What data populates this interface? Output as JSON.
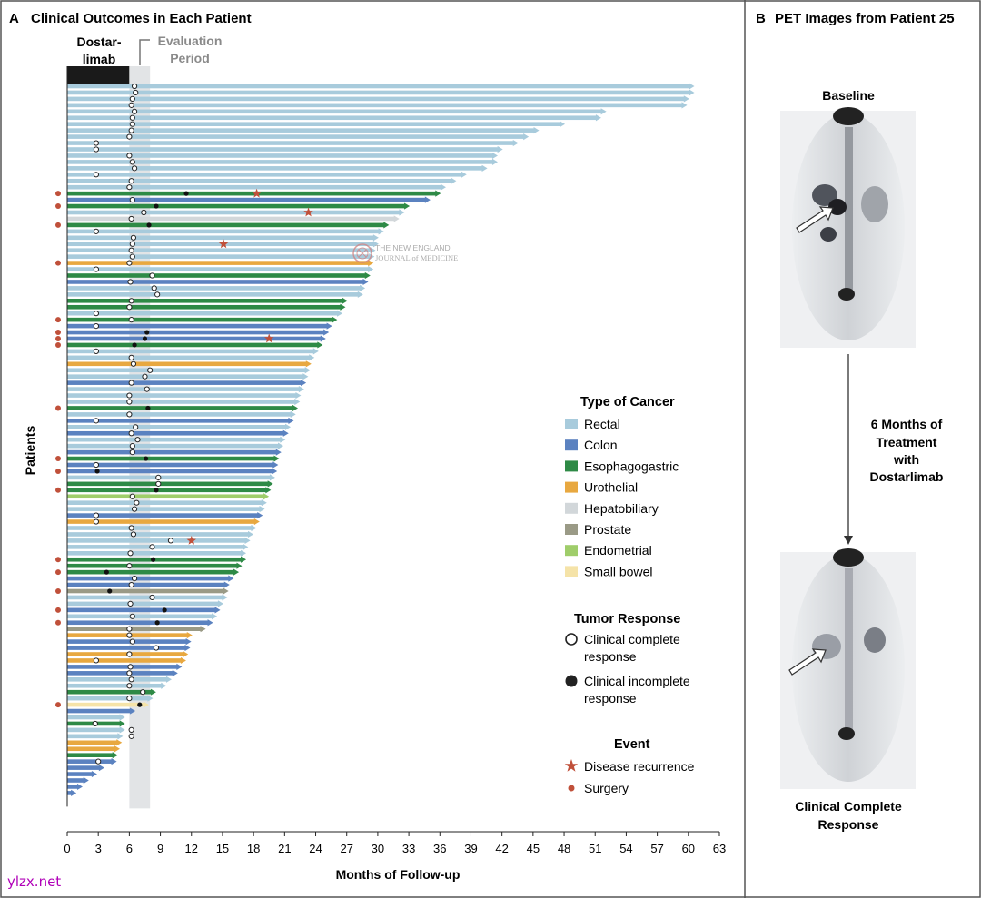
{
  "panel_a": {
    "letter": "A",
    "title": "Clinical Outcomes in Each Patient",
    "dostarlimab_label_1": "Dostar-",
    "dostarlimab_label_2": "limab",
    "evaluation_label_1": "Evaluation",
    "evaluation_label_2": "Period",
    "journal_watermark_1": "THE NEW ENGLAND",
    "journal_watermark_2": "JOURNAL of MEDICINE"
  },
  "panel_b": {
    "letter": "B",
    "title": "PET Images from Patient 25",
    "baseline_label": "Baseline",
    "treatment_label": [
      "6 Months of",
      "Treatment",
      "with",
      "Dostarlimab"
    ],
    "final_label": [
      "Clinical Complete",
      "Response"
    ]
  },
  "legend": {
    "type_title": "Type of Cancer",
    "types": [
      {
        "label": "Rectal",
        "color": "#a8cbdc"
      },
      {
        "label": "Colon",
        "color": "#5b82c0"
      },
      {
        "label": "Esophagogastric",
        "color": "#2e8a46"
      },
      {
        "label": "Urothelial",
        "color": "#e8a840"
      },
      {
        "label": "Hepatobiliary",
        "color": "#d2d7da"
      },
      {
        "label": "Prostate",
        "color": "#9a9a86"
      },
      {
        "label": "Endometrial",
        "color": "#9fcd6a"
      },
      {
        "label": "Small bowel",
        "color": "#f5e3a8"
      }
    ],
    "response_title": "Tumor Response",
    "complete_1": "Clinical complete",
    "complete_2": "response",
    "incomplete_1": "Clinical incomplete",
    "incomplete_2": "response",
    "event_title": "Event",
    "recurrence": "Disease recurrence",
    "surgery": "Surgery"
  },
  "site_watermark": "ylzx.net",
  "chart_data": {
    "type": "bar",
    "orientation": "horizontal",
    "title": "Clinical Outcomes in Each Patient",
    "xlabel": "Months of Follow-up",
    "ylabel": "Patients",
    "xlim": [
      0,
      63
    ],
    "xticks": [
      0,
      3,
      6,
      9,
      12,
      15,
      18,
      21,
      24,
      27,
      30,
      33,
      36,
      39,
      42,
      45,
      48,
      51,
      54,
      57,
      60,
      63
    ],
    "dostarlimab_period": [
      0,
      6
    ],
    "evaluation_period": [
      6,
      8
    ],
    "colors": {
      "rectal": "#a8cbdc",
      "colon": "#5b82c0",
      "eso": "#2e8a46",
      "uro": "#e8a840",
      "hep": "#d2d7da",
      "pro": "#9a9a86",
      "endo": "#9fcd6a",
      "sb": "#f5e3a8"
    },
    "patients": [
      {
        "v": 60.5,
        "t": "rectal",
        "r": "c",
        "rx": 6.5
      },
      {
        "v": 60.5,
        "t": "rectal",
        "r": "c",
        "rx": 6.6
      },
      {
        "v": 60.0,
        "t": "rectal",
        "r": "c",
        "rx": 6.3
      },
      {
        "v": 59.8,
        "t": "rectal",
        "r": "c",
        "rx": 6.2
      },
      {
        "v": 52.0,
        "t": "rectal",
        "r": "c",
        "rx": 6.5
      },
      {
        "v": 51.5,
        "t": "rectal",
        "r": "c",
        "rx": 6.3
      },
      {
        "v": 48.0,
        "t": "rectal",
        "r": "c",
        "rx": 6.3
      },
      {
        "v": 45.5,
        "t": "rectal",
        "r": "c",
        "rx": 6.2
      },
      {
        "v": 44.5,
        "t": "rectal",
        "r": "c",
        "rx": 6.0
      },
      {
        "v": 43.5,
        "t": "rectal",
        "r": "c",
        "rx": 2.8
      },
      {
        "v": 42.0,
        "t": "rectal",
        "r": "c",
        "rx": 2.8
      },
      {
        "v": 41.5,
        "t": "rectal",
        "r": "c",
        "rx": 6.0
      },
      {
        "v": 41.5,
        "t": "rectal",
        "r": "c",
        "rx": 6.3
      },
      {
        "v": 40.5,
        "t": "rectal",
        "r": "c",
        "rx": 6.5
      },
      {
        "v": 38.5,
        "t": "rectal",
        "r": "c",
        "rx": 2.8
      },
      {
        "v": 37.5,
        "t": "rectal",
        "r": "c",
        "rx": 6.2
      },
      {
        "v": 36.5,
        "t": "rectal",
        "r": "c",
        "rx": 6.0
      },
      {
        "v": 36.0,
        "t": "eso",
        "r": "i",
        "rx": 11.5,
        "s": 1,
        "rec": 18.3
      },
      {
        "v": 35.0,
        "t": "colon",
        "r": "c",
        "rx": 6.3
      },
      {
        "v": 33.0,
        "t": "eso",
        "r": "i",
        "rx": 8.6,
        "s": 1
      },
      {
        "v": 32.5,
        "t": "rectal",
        "r": "c",
        "rx": 7.4,
        "rec": 23.3
      },
      {
        "v": 32.0,
        "t": "hep",
        "r": "c",
        "rx": 6.2
      },
      {
        "v": 31.0,
        "t": "eso",
        "r": "i",
        "rx": 7.9,
        "s": 1
      },
      {
        "v": 30.5,
        "t": "rectal",
        "r": "c",
        "rx": 2.8
      },
      {
        "v": 30.0,
        "t": "rectal",
        "r": "c",
        "rx": 6.4
      },
      {
        "v": 30.0,
        "t": "rectal",
        "r": "c",
        "rx": 6.3,
        "rec": 15.1
      },
      {
        "v": 29.7,
        "t": "rectal",
        "r": "c",
        "rx": 6.2
      },
      {
        "v": 29.6,
        "t": "rectal",
        "r": "c",
        "rx": 6.3
      },
      {
        "v": 29.5,
        "t": "uro",
        "r": "c",
        "rx": 6.0,
        "s": 1
      },
      {
        "v": 29.5,
        "t": "rectal",
        "r": "c",
        "rx": 2.8
      },
      {
        "v": 29.2,
        "t": "eso",
        "r": "c",
        "rx": 8.2
      },
      {
        "v": 29.0,
        "t": "colon",
        "r": "c",
        "rx": 6.1
      },
      {
        "v": 28.7,
        "t": "rectal",
        "r": "c",
        "rx": 8.4
      },
      {
        "v": 28.5,
        "t": "rectal",
        "r": "c",
        "rx": 8.7
      },
      {
        "v": 27.0,
        "t": "eso",
        "r": "c",
        "rx": 6.2
      },
      {
        "v": 26.8,
        "t": "eso",
        "r": "c",
        "rx": 6.0
      },
      {
        "v": 26.5,
        "t": "rectal",
        "r": "c",
        "rx": 2.8
      },
      {
        "v": 26.0,
        "t": "eso",
        "r": "c",
        "rx": 6.2,
        "s": 1
      },
      {
        "v": 25.5,
        "t": "colon",
        "r": "c",
        "rx": 2.8
      },
      {
        "v": 25.2,
        "t": "colon",
        "r": "i",
        "rx": 7.7,
        "s": 1
      },
      {
        "v": 24.9,
        "t": "colon",
        "r": "i",
        "rx": 7.5,
        "s": 1,
        "rec": 19.5
      },
      {
        "v": 24.6,
        "t": "eso",
        "r": "i",
        "rx": 6.5,
        "s": 1
      },
      {
        "v": 24.2,
        "t": "rectal",
        "r": "c",
        "rx": 2.8
      },
      {
        "v": 23.8,
        "t": "rectal",
        "r": "c",
        "rx": 6.2
      },
      {
        "v": 23.5,
        "t": "uro",
        "r": "c",
        "rx": 6.4
      },
      {
        "v": 23.4,
        "t": "rectal",
        "r": "c",
        "rx": 8.0
      },
      {
        "v": 23.2,
        "t": "rectal",
        "r": "c",
        "rx": 7.5
      },
      {
        "v": 23.0,
        "t": "colon",
        "r": "c",
        "rx": 6.2
      },
      {
        "v": 22.8,
        "t": "rectal",
        "r": "c",
        "rx": 7.7
      },
      {
        "v": 22.5,
        "t": "rectal",
        "r": "c",
        "rx": 6.0
      },
      {
        "v": 22.4,
        "t": "rectal",
        "r": "c",
        "rx": 6.0
      },
      {
        "v": 22.2,
        "t": "eso",
        "r": "i",
        "rx": 7.8,
        "s": 1
      },
      {
        "v": 22.0,
        "t": "rectal",
        "r": "c",
        "rx": 6.0
      },
      {
        "v": 21.8,
        "t": "colon",
        "r": "c",
        "rx": 2.8
      },
      {
        "v": 21.5,
        "t": "rectal",
        "r": "c",
        "rx": 6.6
      },
      {
        "v": 21.3,
        "t": "colon",
        "r": "c",
        "rx": 6.2
      },
      {
        "v": 21.0,
        "t": "rectal",
        "r": "c",
        "rx": 6.8
      },
      {
        "v": 20.8,
        "t": "rectal",
        "r": "c",
        "rx": 6.3
      },
      {
        "v": 20.6,
        "t": "colon",
        "r": "c",
        "rx": 6.3
      },
      {
        "v": 20.4,
        "t": "eso",
        "r": "i",
        "rx": 7.6,
        "s": 1
      },
      {
        "v": 20.3,
        "t": "colon",
        "r": "c",
        "rx": 2.8
      },
      {
        "v": 20.2,
        "t": "colon",
        "r": "i",
        "rx": 2.9,
        "s": 1
      },
      {
        "v": 20.0,
        "t": "rectal",
        "r": "c",
        "rx": 8.8
      },
      {
        "v": 19.8,
        "t": "eso",
        "r": "c",
        "rx": 8.8
      },
      {
        "v": 19.6,
        "t": "eso",
        "r": "i",
        "rx": 8.6,
        "s": 1
      },
      {
        "v": 19.4,
        "t": "endo",
        "r": "c",
        "rx": 6.3
      },
      {
        "v": 19.2,
        "t": "rectal",
        "r": "c",
        "rx": 6.7
      },
      {
        "v": 19.0,
        "t": "rectal",
        "r": "c",
        "rx": 6.5
      },
      {
        "v": 18.8,
        "t": "colon",
        "r": "c",
        "rx": 2.8
      },
      {
        "v": 18.5,
        "t": "uro",
        "r": "c",
        "rx": 2.8
      },
      {
        "v": 18.2,
        "t": "rectal",
        "r": "c",
        "rx": 6.2
      },
      {
        "v": 17.9,
        "t": "rectal",
        "r": "c",
        "rx": 6.4
      },
      {
        "v": 17.6,
        "t": "rectal",
        "r": "c",
        "rx": 10.0,
        "rec": 12.0
      },
      {
        "v": 17.4,
        "t": "rectal",
        "r": "c",
        "rx": 8.2
      },
      {
        "v": 17.2,
        "t": "rectal",
        "r": "c",
        "rx": 6.1
      },
      {
        "v": 17.2,
        "t": "eso",
        "r": "i",
        "rx": 8.3,
        "s": 1
      },
      {
        "v": 16.8,
        "t": "eso",
        "r": "c",
        "rx": 6.0
      },
      {
        "v": 16.5,
        "t": "eso",
        "r": "i",
        "rx": 3.8,
        "s": 1
      },
      {
        "v": 16.0,
        "t": "colon",
        "r": "c",
        "rx": 6.5
      },
      {
        "v": 15.6,
        "t": "colon",
        "r": "c",
        "rx": 6.2
      },
      {
        "v": 15.5,
        "t": "pro",
        "r": "i",
        "rx": 4.1,
        "s": 1
      },
      {
        "v": 15.4,
        "t": "rectal",
        "r": "c",
        "rx": 8.2
      },
      {
        "v": 15.0,
        "t": "rectal",
        "r": "c",
        "rx": 6.1
      },
      {
        "v": 14.7,
        "t": "colon",
        "r": "i",
        "rx": 9.4,
        "s": 1
      },
      {
        "v": 14.4,
        "t": "rectal",
        "r": "c",
        "rx": 6.3
      },
      {
        "v": 14.0,
        "t": "colon",
        "r": "i",
        "rx": 8.7,
        "s": 1
      },
      {
        "v": 13.3,
        "t": "pro",
        "r": "c",
        "rx": 6.0
      },
      {
        "v": 12.0,
        "t": "uro",
        "r": "c",
        "rx": 6.0
      },
      {
        "v": 11.9,
        "t": "colon",
        "r": "c",
        "rx": 6.3
      },
      {
        "v": 11.8,
        "t": "colon",
        "r": "c",
        "rx": 8.6
      },
      {
        "v": 11.6,
        "t": "uro",
        "r": "c",
        "rx": 6.0
      },
      {
        "v": 11.4,
        "t": "uro",
        "r": "c",
        "rx": 2.8
      },
      {
        "v": 11.0,
        "t": "colon",
        "r": "c",
        "rx": 6.1
      },
      {
        "v": 10.6,
        "t": "colon",
        "r": "c",
        "rx": 6.0
      },
      {
        "v": 10.0,
        "t": "rectal",
        "r": "c",
        "rx": 6.2
      },
      {
        "v": 9.5,
        "t": "rectal",
        "r": "c",
        "rx": 6.0
      },
      {
        "v": 8.5,
        "t": "eso",
        "r": "c",
        "rx": 7.3
      },
      {
        "v": 8.2,
        "t": "rectal",
        "r": "c",
        "rx": 6.0
      },
      {
        "v": 7.8,
        "t": "sb",
        "r": "i",
        "rx": 7.0,
        "s": 1
      },
      {
        "v": 6.5,
        "t": "colon",
        "r": null
      },
      {
        "v": 5.5,
        "t": "rectal",
        "r": null
      },
      {
        "v": 5.5,
        "t": "eso",
        "r": "c",
        "rx": 2.7
      },
      {
        "v": 5.5,
        "t": "rectal",
        "r": "c",
        "rx": 6.2
      },
      {
        "v": 5.3,
        "t": "rectal",
        "r": "c",
        "rx": 6.2
      },
      {
        "v": 5.2,
        "t": "uro",
        "r": null
      },
      {
        "v": 5.0,
        "t": "uro",
        "r": null
      },
      {
        "v": 4.8,
        "t": "eso",
        "r": null
      },
      {
        "v": 4.7,
        "t": "colon",
        "r": "c",
        "rx": 3.0
      },
      {
        "v": 3.5,
        "t": "colon",
        "r": null
      },
      {
        "v": 2.8,
        "t": "colon",
        "r": null
      },
      {
        "v": 2.0,
        "t": "colon",
        "r": null
      },
      {
        "v": 1.4,
        "t": "colon",
        "r": null
      },
      {
        "v": 0.8,
        "t": "colon",
        "r": null
      }
    ]
  }
}
